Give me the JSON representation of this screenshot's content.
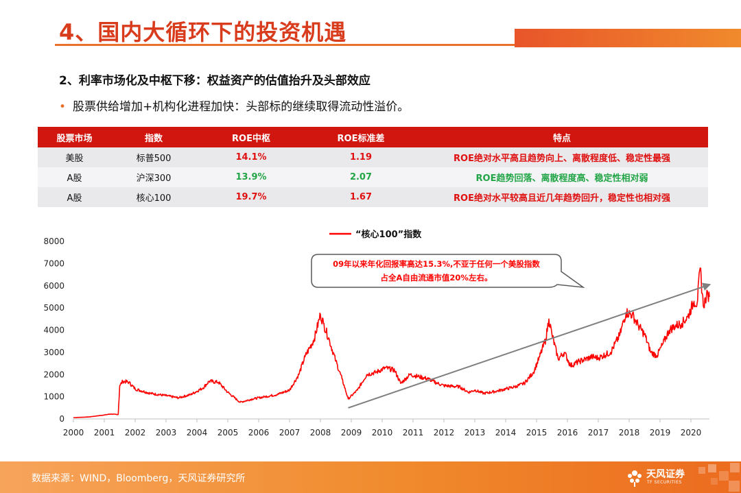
{
  "header": {
    "title": "4、国内大循环下的投资机遇",
    "subtitle": "2、利率市场化及中枢下移：权益资产的估值抬升及头部效应",
    "bullet": "股票供给增加+机构化进程加快：头部标的继续取得流动性溢价。"
  },
  "table": {
    "headers": [
      "股票市场",
      "指数",
      "ROE中枢",
      "ROE标准差",
      "特点"
    ],
    "rows": [
      {
        "market": "美股",
        "index": "标普500",
        "roe_center": "14.1%",
        "roe_std": "1.19",
        "feature": "ROE绝对水平高且趋势向上、离散程度低、稳定性最强",
        "tone": "red"
      },
      {
        "market": "A股",
        "index": "沪深300",
        "roe_center": "13.9%",
        "roe_std": "2.07",
        "feature": "ROE趋势回落、离散程度高、稳定性相对弱",
        "tone": "green"
      },
      {
        "market": "A股",
        "index": "核心100",
        "roe_center": "19.7%",
        "roe_std": "1.67",
        "feature": "ROE绝对水平较高且近几年趋势回升，稳定性也相对强",
        "tone": "red"
      }
    ],
    "colors": {
      "header_bg": "#d0160e",
      "red": "#e01010",
      "green": "#22a546"
    }
  },
  "chart_data": {
    "type": "line",
    "series": [
      {
        "name": "“核心100”指数",
        "color": "#ff0000",
        "points": [
          [
            2000.0,
            60
          ],
          [
            2000.5,
            90
          ],
          [
            2000.9,
            160
          ],
          [
            2001.2,
            220
          ],
          [
            2001.45,
            200
          ],
          [
            2001.5,
            1500
          ],
          [
            2001.6,
            1700
          ],
          [
            2001.8,
            1650
          ],
          [
            2002.0,
            1350
          ],
          [
            2002.5,
            1150
          ],
          [
            2003.0,
            1050
          ],
          [
            2003.4,
            950
          ],
          [
            2003.8,
            1100
          ],
          [
            2004.2,
            1400
          ],
          [
            2004.4,
            1700
          ],
          [
            2004.7,
            1650
          ],
          [
            2005.0,
            1200
          ],
          [
            2005.4,
            750
          ],
          [
            2005.8,
            900
          ],
          [
            2006.2,
            1000
          ],
          [
            2006.6,
            1100
          ],
          [
            2007.0,
            1300
          ],
          [
            2007.3,
            2000
          ],
          [
            2007.5,
            2800
          ],
          [
            2007.8,
            3600
          ],
          [
            2008.0,
            4700
          ],
          [
            2008.1,
            4300
          ],
          [
            2008.3,
            3500
          ],
          [
            2008.5,
            2600
          ],
          [
            2008.7,
            1800
          ],
          [
            2008.9,
            900
          ],
          [
            2009.2,
            1300
          ],
          [
            2009.5,
            2000
          ],
          [
            2009.8,
            2100
          ],
          [
            2010.1,
            2300
          ],
          [
            2010.4,
            2200
          ],
          [
            2010.6,
            1600
          ],
          [
            2010.9,
            2000
          ],
          [
            2011.2,
            1900
          ],
          [
            2011.5,
            1800
          ],
          [
            2011.8,
            1600
          ],
          [
            2012.0,
            1500
          ],
          [
            2012.5,
            1450
          ],
          [
            2012.8,
            1200
          ],
          [
            2013.0,
            1300
          ],
          [
            2013.3,
            1150
          ],
          [
            2013.7,
            1250
          ],
          [
            2014.0,
            1350
          ],
          [
            2014.3,
            1450
          ],
          [
            2014.6,
            1600
          ],
          [
            2014.9,
            2100
          ],
          [
            2015.1,
            2800
          ],
          [
            2015.3,
            3600
          ],
          [
            2015.4,
            4500
          ],
          [
            2015.5,
            3800
          ],
          [
            2015.7,
            2700
          ],
          [
            2015.9,
            3000
          ],
          [
            2016.1,
            2400
          ],
          [
            2016.4,
            2600
          ],
          [
            2016.8,
            2800
          ],
          [
            2017.0,
            2750
          ],
          [
            2017.4,
            3000
          ],
          [
            2017.7,
            3800
          ],
          [
            2017.9,
            4800
          ],
          [
            2018.1,
            4700
          ],
          [
            2018.3,
            4200
          ],
          [
            2018.5,
            3800
          ],
          [
            2018.7,
            3000
          ],
          [
            2018.9,
            2850
          ],
          [
            2019.1,
            3400
          ],
          [
            2019.3,
            4000
          ],
          [
            2019.5,
            4200
          ],
          [
            2019.7,
            4300
          ],
          [
            2019.9,
            4600
          ],
          [
            2020.1,
            5300
          ],
          [
            2020.2,
            5200
          ],
          [
            2020.3,
            6800
          ],
          [
            2020.4,
            5100
          ],
          [
            2020.5,
            5500
          ],
          [
            2020.55,
            5600
          ],
          [
            2020.6,
            5500
          ]
        ]
      }
    ],
    "trend_line": {
      "color": "#7f7f7f",
      "start": [
        2008.9,
        500
      ],
      "end": [
        2020.6,
        6050
      ]
    },
    "annotation": {
      "lines": [
        "09年以来年化回报率高达15.3%,不亚于任何一个美股指数",
        "占全A自由流通市值20%左右。"
      ],
      "color": "#ff0000"
    },
    "x_ticks": [
      2000,
      2001,
      2002,
      2003,
      2004,
      2005,
      2006,
      2007,
      2008,
      2009,
      2010,
      2011,
      2012,
      2013,
      2014,
      2015,
      2016,
      2017,
      2018,
      2019,
      2020
    ],
    "y_ticks": [
      0,
      1000,
      2000,
      3000,
      4000,
      5000,
      6000,
      7000,
      8000
    ],
    "xlim": [
      2000,
      2020.6
    ],
    "ylim": [
      0,
      8000
    ],
    "legend_position": "top-center",
    "grid": false
  },
  "footer": {
    "source": "数据来源：WIND，Bloomberg，天风证券研究所",
    "logo_cn": "天风证券",
    "logo_en": "TF SECURITIES"
  }
}
